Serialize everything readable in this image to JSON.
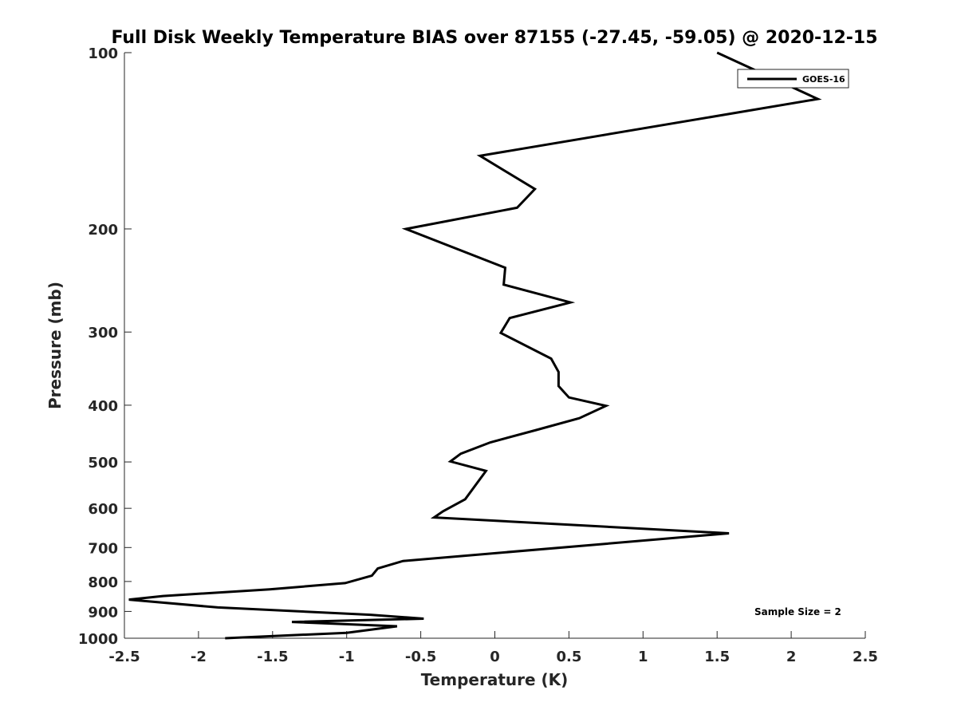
{
  "chart_data": {
    "type": "line",
    "title": "Full Disk Weekly Temperature BIAS over 87155 (-27.45, -59.05) @ 2020-12-15",
    "xlabel": "Temperature (K)",
    "ylabel": "Pressure (mb)",
    "xlim": [
      -2.5,
      2.5
    ],
    "ylim": [
      1000,
      100
    ],
    "yscale": "log",
    "xticks": [
      -2.5,
      -2,
      -1.5,
      -1,
      -0.5,
      0,
      0.5,
      1,
      1.5,
      2,
      2.5
    ],
    "xtick_labels": [
      "-2.5",
      "-2",
      "-1.5",
      "-1",
      "-0.5",
      "0",
      "0.5",
      "1",
      "1.5",
      "2",
      "2.5"
    ],
    "yticks": [
      100,
      200,
      300,
      400,
      500,
      600,
      700,
      800,
      900,
      1000
    ],
    "ytick_labels": [
      "100",
      "200",
      "300",
      "400",
      "500",
      "600",
      "700",
      "800",
      "900",
      "1000"
    ],
    "legend": {
      "position": "top-right",
      "entries": [
        "GOES-16"
      ]
    },
    "annotation": "Sample Size = 2",
    "series": [
      {
        "name": "GOES-16",
        "color": "#000000",
        "points": [
          {
            "x": 1.5,
            "p": 100
          },
          {
            "x": 2.18,
            "p": 120
          },
          {
            "x": -0.1,
            "p": 150
          },
          {
            "x": 0.27,
            "p": 171
          },
          {
            "x": 0.15,
            "p": 184
          },
          {
            "x": -0.6,
            "p": 200
          },
          {
            "x": 0.07,
            "p": 233
          },
          {
            "x": 0.06,
            "p": 249
          },
          {
            "x": 0.51,
            "p": 267
          },
          {
            "x": 0.1,
            "p": 284
          },
          {
            "x": 0.04,
            "p": 301
          },
          {
            "x": 0.38,
            "p": 333
          },
          {
            "x": 0.43,
            "p": 351
          },
          {
            "x": 0.43,
            "p": 371
          },
          {
            "x": 0.5,
            "p": 388
          },
          {
            "x": 0.75,
            "p": 401
          },
          {
            "x": 0.57,
            "p": 421
          },
          {
            "x": 0.28,
            "p": 441
          },
          {
            "x": -0.03,
            "p": 463
          },
          {
            "x": -0.23,
            "p": 484
          },
          {
            "x": -0.3,
            "p": 499
          },
          {
            "x": -0.06,
            "p": 518
          },
          {
            "x": -0.2,
            "p": 579
          },
          {
            "x": -0.35,
            "p": 607
          },
          {
            "x": -0.41,
            "p": 622
          },
          {
            "x": 1.58,
            "p": 662
          },
          {
            "x": -0.62,
            "p": 738
          },
          {
            "x": -0.79,
            "p": 760
          },
          {
            "x": -0.83,
            "p": 782
          },
          {
            "x": -1.01,
            "p": 805
          },
          {
            "x": -1.52,
            "p": 825
          },
          {
            "x": -2.24,
            "p": 847
          },
          {
            "x": -2.47,
            "p": 859
          },
          {
            "x": -1.87,
            "p": 886
          },
          {
            "x": -0.84,
            "p": 912
          },
          {
            "x": -0.48,
            "p": 926
          },
          {
            "x": -1.37,
            "p": 938
          },
          {
            "x": -0.66,
            "p": 954
          },
          {
            "x": -1.0,
            "p": 979
          },
          {
            "x": -1.82,
            "p": 1000
          }
        ]
      }
    ]
  }
}
